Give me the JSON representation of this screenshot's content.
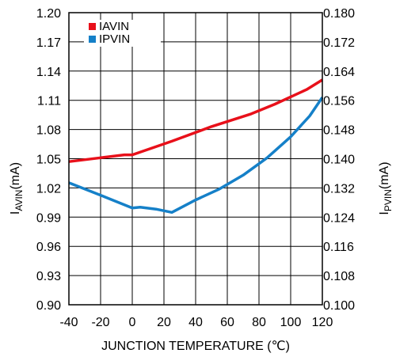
{
  "chart_data": {
    "type": "line",
    "title": "",
    "xlabel": "JUNCTION TEMPERATURE (℃)",
    "ylabel_left": {
      "main": "I",
      "sub": "AVIN",
      "unit": "(mA)"
    },
    "ylabel_right": {
      "main": "I",
      "sub": "PVIN",
      "unit": "(mA)"
    },
    "xlim": [
      -40,
      120
    ],
    "ylim_left": [
      0.9,
      1.2
    ],
    "ylim_right": [
      0.1,
      0.18
    ],
    "x_ticks": [
      "-40",
      "-20",
      "0",
      "20",
      "40",
      "60",
      "80",
      "100",
      "120"
    ],
    "y_left_ticks": [
      "0.90",
      "0.93",
      "0.96",
      "0.99",
      "1.02",
      "1.05",
      "1.08",
      "1.11",
      "1.14",
      "1.17",
      "1.20"
    ],
    "y_right_ticks": [
      "0.100",
      "0.108",
      "0.116",
      "0.124",
      "0.132",
      "0.140",
      "0.148",
      "0.156",
      "0.164",
      "0.172",
      "0.180"
    ],
    "grid": true,
    "legend_position": "top-left",
    "series": [
      {
        "name": "IAVIN",
        "axis": "left",
        "color": "#e8101a",
        "points": [
          [
            -40,
            1.047
          ],
          [
            -20,
            1.051
          ],
          [
            -5,
            1.054
          ],
          [
            0,
            1.054
          ],
          [
            25,
            1.068
          ],
          [
            50,
            1.083
          ],
          [
            75,
            1.096
          ],
          [
            90,
            1.106
          ],
          [
            110,
            1.121
          ],
          [
            120,
            1.131
          ]
        ]
      },
      {
        "name": "IPVIN",
        "axis": "right",
        "color": "#1580c8",
        "points": [
          [
            -40,
            0.1334
          ],
          [
            -20,
            0.13
          ],
          [
            0,
            0.1265
          ],
          [
            5,
            0.1267
          ],
          [
            15,
            0.1262
          ],
          [
            25,
            0.1253
          ],
          [
            40,
            0.1287
          ],
          [
            55,
            0.1317
          ],
          [
            70,
            0.1355
          ],
          [
            85,
            0.1402
          ],
          [
            100,
            0.146
          ],
          [
            112,
            0.1517
          ],
          [
            120,
            0.1568
          ]
        ]
      }
    ]
  }
}
